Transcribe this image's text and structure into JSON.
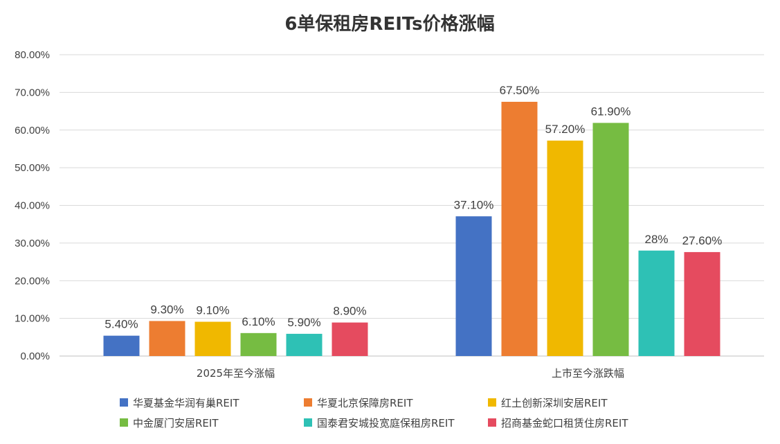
{
  "chart_data": {
    "type": "bar",
    "title": "6单保租房REITs价格涨幅",
    "categories": [
      "2025年至今涨幅",
      "上市至今涨跌幅"
    ],
    "y_ticks": [
      "0.00%",
      "10.00%",
      "20.00%",
      "30.00%",
      "40.00%",
      "50.00%",
      "60.00%",
      "70.00%",
      "80.00%"
    ],
    "ylim": [
      0,
      80
    ],
    "grid": true,
    "legend_position": "bottom",
    "series": [
      {
        "name": "华夏基金华润有巢REIT",
        "color": "#4472C4",
        "values": [
          5.4,
          37.1
        ],
        "labels": [
          "5.40%",
          "37.10%"
        ]
      },
      {
        "name": "华夏北京保障房REIT",
        "color": "#ED7D31",
        "values": [
          9.3,
          67.5
        ],
        "labels": [
          "9.30%",
          "67.50%"
        ]
      },
      {
        "name": "红土创新深圳安居REIT",
        "color": "#F0B800",
        "values": [
          9.1,
          57.2
        ],
        "labels": [
          "9.10%",
          "57.20%"
        ]
      },
      {
        "name": "中金厦门安居REIT",
        "color": "#76BC42",
        "values": [
          6.1,
          61.9
        ],
        "labels": [
          "6.10%",
          "61.90%"
        ]
      },
      {
        "name": "国泰君安城投宽庭保租房REIT",
        "color": "#2EC1B5",
        "values": [
          5.9,
          28
        ],
        "labels": [
          "5.90%",
          "28%"
        ]
      },
      {
        "name": "招商基金蛇口租赁住房REIT",
        "color": "#E54B5F",
        "values": [
          8.9,
          27.6
        ],
        "labels": [
          "8.90%",
          "27.60%"
        ]
      }
    ]
  }
}
